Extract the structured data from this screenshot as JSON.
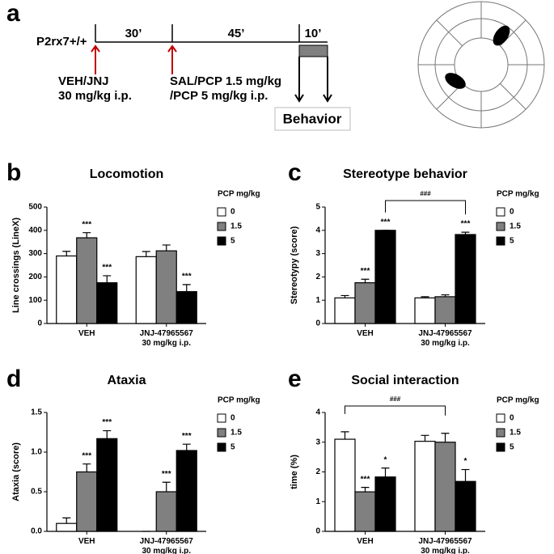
{
  "panel_a": {
    "letter": "a",
    "strain": "P2rx7+/+",
    "intervals": [
      "30’",
      "45’",
      "10’"
    ],
    "treatment_1": "VEH/JNJ\n30 mg/kg i.p.",
    "treatment_2": "SAL/PCP 1.5 mg/kg\n/PCP 5 mg/kg i.p.",
    "behavior": "Behavior"
  },
  "chart_data": [
    {
      "type": "bar",
      "letter": "b",
      "title": "Locomotion",
      "ylabel": "Line crossings (LineX)",
      "legend_title": "PCP mg/kg",
      "categories": [
        "VEH",
        "JNJ-47965567\n30 mg/kg i.p."
      ],
      "ylim": [
        0,
        500
      ],
      "yticks": [
        0,
        100,
        200,
        300,
        400,
        500
      ],
      "series": [
        {
          "name": "0",
          "color": "#ffffff",
          "values": [
            290,
            287
          ],
          "errors": [
            20,
            22
          ],
          "stars": [
            null,
            null
          ]
        },
        {
          "name": "1.5",
          "color": "#808080",
          "values": [
            368,
            312
          ],
          "errors": [
            22,
            25
          ],
          "stars": [
            "***",
            null
          ]
        },
        {
          "name": "5",
          "color": "#000000",
          "values": [
            175,
            137
          ],
          "errors": [
            30,
            30
          ],
          "stars": [
            "***",
            "***"
          ]
        }
      ]
    },
    {
      "type": "bar",
      "letter": "c",
      "title": "Stereotype behavior",
      "ylabel": "Stereotypy (score)",
      "legend_title": "PCP mg/kg",
      "categories": [
        "VEH",
        "JNJ-47965567\n30 mg/kg i.p."
      ],
      "ylim": [
        0,
        5
      ],
      "yticks": [
        0,
        1,
        2,
        3,
        4,
        5
      ],
      "series": [
        {
          "name": "0",
          "color": "#ffffff",
          "values": [
            1.1,
            1.1
          ],
          "errors": [
            0.1,
            0.05
          ],
          "stars": [
            null,
            null
          ]
        },
        {
          "name": "1.5",
          "color": "#808080",
          "values": [
            1.75,
            1.15
          ],
          "errors": [
            0.15,
            0.08
          ],
          "stars": [
            "***",
            null
          ]
        },
        {
          "name": "5",
          "color": "#000000",
          "values": [
            4.0,
            3.82
          ],
          "errors": [
            0,
            0.1
          ],
          "stars": [
            "***",
            "***"
          ]
        }
      ],
      "bracket": {
        "label": "###",
        "from": {
          "category": "VEH",
          "series": "5"
        },
        "to": {
          "category": "JNJ-47965567\n30 mg/kg i.p.",
          "series": "5"
        }
      }
    },
    {
      "type": "bar",
      "letter": "d",
      "title": "Ataxia",
      "ylabel": "Ataxia (score)",
      "legend_title": "PCP mg/kg",
      "categories": [
        "VEH",
        "JNJ-47965567\n30 mg/kg i.p."
      ],
      "ylim": [
        0,
        1.5
      ],
      "yticks": [
        {
          "value": 0,
          "label": "0.0"
        },
        0.5,
        {
          "value": 1,
          "label": "1.0"
        },
        1.5
      ],
      "series": [
        {
          "name": "0",
          "color": "#ffffff",
          "values": [
            0.1,
            0
          ],
          "errors": [
            0.07,
            0
          ],
          "stars": [
            null,
            null
          ]
        },
        {
          "name": "1.5",
          "color": "#808080",
          "values": [
            0.75,
            0.5
          ],
          "errors": [
            0.1,
            0.12
          ],
          "stars": [
            "***",
            "***"
          ]
        },
        {
          "name": "5",
          "color": "#000000",
          "values": [
            1.17,
            1.02
          ],
          "errors": [
            0.1,
            0.08
          ],
          "stars": [
            "***",
            "***"
          ]
        }
      ]
    },
    {
      "type": "bar",
      "letter": "e",
      "title": "Social interaction",
      "ylabel": "time (%)",
      "legend_title": "PCP mg/kg",
      "categories": [
        "VEH",
        "JNJ-47965567\n30 mg/kg i.p."
      ],
      "ylim": [
        0,
        4
      ],
      "yticks": [
        0,
        1,
        2,
        3,
        4
      ],
      "series": [
        {
          "name": "0",
          "color": "#ffffff",
          "values": [
            3.1,
            3.03
          ],
          "errors": [
            0.25,
            0.2
          ],
          "stars": [
            null,
            null
          ]
        },
        {
          "name": "1.5",
          "color": "#808080",
          "values": [
            1.33,
            3.0
          ],
          "errors": [
            0.15,
            0.3
          ],
          "stars": [
            "***",
            null
          ]
        },
        {
          "name": "5",
          "color": "#000000",
          "values": [
            1.83,
            1.68
          ],
          "errors": [
            0.3,
            0.4
          ],
          "stars": [
            "*",
            "*"
          ]
        }
      ],
      "bracket": {
        "label": "###",
        "from": {
          "category": "VEH",
          "series": "0"
        },
        "to": {
          "category": "JNJ-47965567\n30 mg/kg i.p.",
          "series": "1.5"
        }
      }
    }
  ]
}
